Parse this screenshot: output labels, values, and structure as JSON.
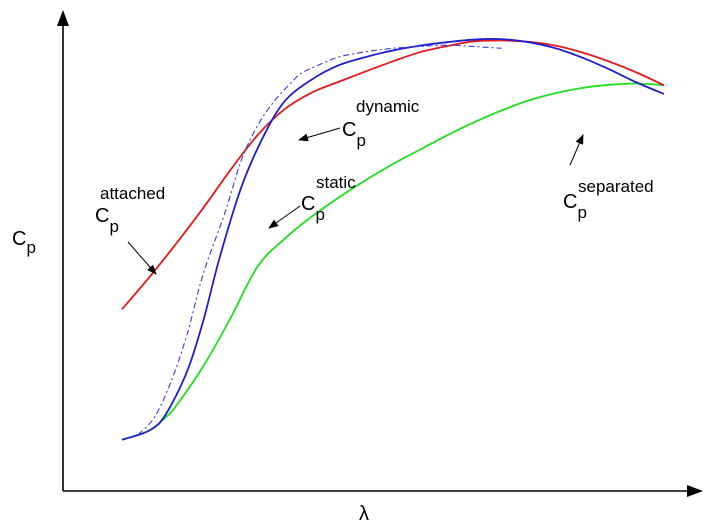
{
  "chart_data": {
    "type": "line",
    "title": "",
    "xlabel": "λ",
    "ylabel": {
      "base": "C",
      "sub": "p"
    },
    "xlim": [
      0,
      1
    ],
    "ylim": [
      0,
      1
    ],
    "grid": false,
    "series": [
      {
        "name": {
          "base": "C",
          "sub": "p",
          "sup": "attached"
        },
        "color": "#e31a1c",
        "line_style": "solid",
        "x": [
          0.0,
          0.05,
          0.1,
          0.15,
          0.2,
          0.25,
          0.3,
          0.35,
          0.4,
          0.45,
          0.5,
          0.55,
          0.6,
          0.65,
          0.7,
          0.75,
          0.8,
          0.85,
          0.9,
          0.95,
          1.0
        ],
        "y": [
          0.358,
          0.431,
          0.509,
          0.591,
          0.678,
          0.758,
          0.818,
          0.856,
          0.881,
          0.905,
          0.928,
          0.949,
          0.963,
          0.974,
          0.976,
          0.973,
          0.964,
          0.948,
          0.927,
          0.902,
          0.873
        ]
      },
      {
        "name": {
          "base": "C",
          "sub": "p",
          "sup": "static"
        },
        "color": "#1f1fd1",
        "line_style": "solid",
        "x": [
          0.0,
          0.05,
          0.08,
          0.12,
          0.15,
          0.18,
          0.22,
          0.26,
          0.3,
          0.35,
          0.4,
          0.45,
          0.5,
          0.55,
          0.6,
          0.65,
          0.7,
          0.75,
          0.8,
          0.85,
          0.9,
          0.95,
          1.0
        ],
        "y": [
          0.058,
          0.079,
          0.115,
          0.215,
          0.332,
          0.476,
          0.638,
          0.753,
          0.836,
          0.886,
          0.919,
          0.938,
          0.953,
          0.964,
          0.972,
          0.978,
          0.979,
          0.972,
          0.958,
          0.936,
          0.909,
          0.879,
          0.853
        ]
      },
      {
        "name": {
          "base": "C",
          "sub": "p",
          "sup": "dynamic"
        },
        "color": "#3a3ae0",
        "line_style": "dash-dot",
        "x": [
          0.03,
          0.06,
          0.09,
          0.12,
          0.15,
          0.19,
          0.22,
          0.25,
          0.28,
          0.31,
          0.33,
          0.36,
          0.4,
          0.45,
          0.5,
          0.55,
          0.6,
          0.65,
          0.7
        ],
        "y": [
          0.07,
          0.11,
          0.19,
          0.3,
          0.44,
          0.58,
          0.7,
          0.78,
          0.835,
          0.876,
          0.9,
          0.918,
          0.938,
          0.95,
          0.958,
          0.962,
          0.965,
          0.962,
          0.958
        ]
      },
      {
        "name": {
          "base": "C",
          "sub": "p",
          "sup": "separated"
        },
        "color": "#22dd22",
        "line_style": "solid",
        "x": [
          0.0,
          0.05,
          0.08,
          0.1,
          0.15,
          0.2,
          0.25,
          0.3,
          0.35,
          0.4,
          0.45,
          0.5,
          0.55,
          0.6,
          0.65,
          0.7,
          0.75,
          0.8,
          0.85,
          0.9,
          0.95,
          1.0
        ],
        "y": [
          0.058,
          0.079,
          0.109,
          0.136,
          0.227,
          0.337,
          0.456,
          0.52,
          0.571,
          0.615,
          0.655,
          0.692,
          0.725,
          0.758,
          0.788,
          0.815,
          0.838,
          0.855,
          0.867,
          0.874,
          0.877,
          0.873
        ]
      }
    ],
    "annotations": [
      {
        "series": 0,
        "text_sup": "attached"
      },
      {
        "series": 2,
        "text_sup": "dynamic"
      },
      {
        "series": 1,
        "text_sup": "static"
      },
      {
        "series": 3,
        "text_sup": "separated"
      }
    ]
  }
}
